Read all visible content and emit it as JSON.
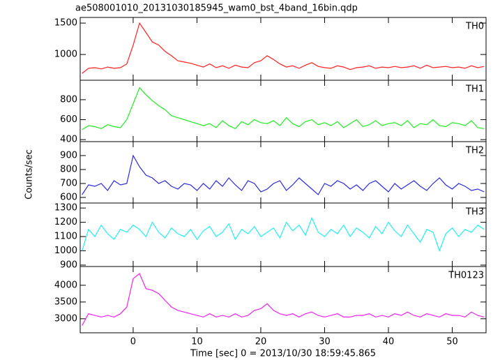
{
  "title": "ae508001010_20131030185945_wam0_bst_4band_16bin.qdp",
  "ylabel": "Counts/sec",
  "xlabel": "Time [sec] 0 = 2013/10/30 18:59:45.865",
  "chart_data": [
    {
      "type": "line",
      "label": "TH0",
      "color": "#ff2020",
      "x": [
        -8,
        -7,
        -6,
        -5,
        -4,
        -3,
        -2,
        -1,
        0,
        1,
        2,
        3,
        4,
        5,
        6,
        7,
        8,
        9,
        10,
        11,
        12,
        13,
        14,
        15,
        16,
        17,
        18,
        19,
        20,
        21,
        22,
        23,
        24,
        25,
        26,
        27,
        28,
        29,
        30,
        31,
        32,
        33,
        34,
        35,
        36,
        37,
        38,
        39,
        40,
        41,
        42,
        43,
        44,
        45,
        46,
        47,
        48,
        49,
        50,
        51,
        52,
        53,
        54,
        55
      ],
      "values": [
        700,
        780,
        790,
        770,
        800,
        780,
        790,
        850,
        1150,
        1500,
        1350,
        1200,
        1150,
        1050,
        980,
        900,
        880,
        860,
        830,
        800,
        850,
        790,
        820,
        780,
        830,
        800,
        790,
        870,
        900,
        980,
        920,
        850,
        800,
        820,
        780,
        830,
        870,
        810,
        790,
        780,
        820,
        800,
        760,
        790,
        800,
        820,
        780,
        800,
        790,
        810,
        790,
        800,
        820,
        780,
        830,
        790,
        800,
        810,
        790,
        800,
        780,
        820,
        790,
        810
      ],
      "ylim": [
        590,
        1590
      ],
      "yticks": [
        1000,
        1500
      ]
    },
    {
      "type": "line",
      "label": "TH1",
      "color": "#20ee20",
      "x": [
        -8,
        -7,
        -6,
        -5,
        -4,
        -3,
        -2,
        -1,
        0,
        1,
        2,
        3,
        4,
        5,
        6,
        7,
        8,
        9,
        10,
        11,
        12,
        13,
        14,
        15,
        16,
        17,
        18,
        19,
        20,
        21,
        22,
        23,
        24,
        25,
        26,
        27,
        28,
        29,
        30,
        31,
        32,
        33,
        34,
        35,
        36,
        37,
        38,
        39,
        40,
        41,
        42,
        43,
        44,
        45,
        46,
        47,
        48,
        49,
        50,
        51,
        52,
        53,
        54,
        55
      ],
      "values": [
        500,
        540,
        530,
        510,
        550,
        530,
        520,
        600,
        760,
        920,
        850,
        790,
        740,
        700,
        640,
        620,
        600,
        580,
        560,
        540,
        560,
        520,
        590,
        540,
        510,
        580,
        550,
        600,
        570,
        560,
        590,
        540,
        620,
        560,
        530,
        580,
        600,
        550,
        570,
        540,
        580,
        520,
        560,
        600,
        530,
        550,
        590,
        540,
        560,
        570,
        540,
        590,
        520,
        560,
        550,
        600,
        540,
        530,
        570,
        560,
        540,
        590,
        520,
        510
      ],
      "ylim": [
        380,
        995
      ],
      "yticks": [
        400,
        600,
        800
      ]
    },
    {
      "type": "line",
      "label": "TH2",
      "color": "#2a2ae0",
      "x": [
        -8,
        -7,
        -6,
        -5,
        -4,
        -3,
        -2,
        -1,
        0,
        1,
        2,
        3,
        4,
        5,
        6,
        7,
        8,
        9,
        10,
        11,
        12,
        13,
        14,
        15,
        16,
        17,
        18,
        19,
        20,
        21,
        22,
        23,
        24,
        25,
        26,
        27,
        28,
        29,
        30,
        31,
        32,
        33,
        34,
        35,
        36,
        37,
        38,
        39,
        40,
        41,
        42,
        43,
        44,
        45,
        46,
        47,
        48,
        49,
        50,
        51,
        52,
        53,
        54,
        55
      ],
      "values": [
        620,
        690,
        680,
        700,
        650,
        720,
        690,
        700,
        900,
        820,
        760,
        740,
        700,
        720,
        680,
        660,
        700,
        690,
        650,
        700,
        660,
        720,
        680,
        740,
        690,
        650,
        720,
        700,
        640,
        660,
        700,
        720,
        650,
        690,
        740,
        700,
        660,
        620,
        700,
        680,
        720,
        700,
        660,
        690,
        650,
        700,
        720,
        680,
        640,
        700,
        660,
        690,
        720,
        680,
        650,
        700,
        740,
        690,
        660,
        700,
        680,
        650,
        660,
        640
      ],
      "ylim": [
        560,
        1000
      ],
      "yticks": [
        600,
        700,
        800,
        900
      ]
    },
    {
      "type": "line",
      "label": "TH3",
      "color": "#20f0f0",
      "x": [
        -8,
        -7,
        -6,
        -5,
        -4,
        -3,
        -2,
        -1,
        0,
        1,
        2,
        3,
        4,
        5,
        6,
        7,
        8,
        9,
        10,
        11,
        12,
        13,
        14,
        15,
        16,
        17,
        18,
        19,
        20,
        21,
        22,
        23,
        24,
        25,
        26,
        27,
        28,
        29,
        30,
        31,
        32,
        33,
        34,
        35,
        36,
        37,
        38,
        39,
        40,
        41,
        42,
        43,
        44,
        45,
        46,
        47,
        48,
        49,
        50,
        51,
        52,
        53,
        54,
        55
      ],
      "values": [
        1000,
        1150,
        1100,
        1180,
        1120,
        1080,
        1150,
        1130,
        1180,
        1150,
        1100,
        1200,
        1130,
        1090,
        1160,
        1120,
        1100,
        1150,
        1080,
        1140,
        1170,
        1100,
        1130,
        1190,
        1080,
        1150,
        1120,
        1170,
        1100,
        1130,
        1160,
        1090,
        1200,
        1140,
        1180,
        1110,
        1230,
        1130,
        1100,
        1150,
        1120,
        1180,
        1100,
        1160,
        1130,
        1090,
        1170,
        1120,
        1200,
        1140,
        1100,
        1180,
        1120,
        1060,
        1150,
        1130,
        1000,
        1120,
        1160,
        1100,
        1150,
        1130,
        1180,
        1150
      ],
      "ylim": [
        890,
        1335
      ],
      "yticks": [
        900,
        1000,
        1100,
        1200,
        1300
      ]
    },
    {
      "type": "line",
      "label": "TH0123",
      "color": "#f020f0",
      "x": [
        -8,
        -7,
        -6,
        -5,
        -4,
        -3,
        -2,
        -1,
        0,
        1,
        2,
        3,
        4,
        5,
        6,
        7,
        8,
        9,
        10,
        11,
        12,
        13,
        14,
        15,
        16,
        17,
        18,
        19,
        20,
        21,
        22,
        23,
        24,
        25,
        26,
        27,
        28,
        29,
        30,
        31,
        32,
        33,
        34,
        35,
        36,
        37,
        38,
        39,
        40,
        41,
        42,
        43,
        44,
        45,
        46,
        47,
        48,
        49,
        50,
        51,
        52,
        53,
        54,
        55
      ],
      "values": [
        2800,
        3150,
        3100,
        3050,
        3100,
        3050,
        3150,
        3350,
        4200,
        4350,
        3900,
        3850,
        3750,
        3550,
        3350,
        3250,
        3200,
        3150,
        3100,
        3050,
        3150,
        3050,
        3100,
        3050,
        3150,
        3050,
        3100,
        3250,
        3300,
        3450,
        3250,
        3150,
        3100,
        3150,
        3050,
        3150,
        3200,
        3100,
        3050,
        3100,
        3150,
        3050,
        3050,
        3100,
        3100,
        3150,
        3050,
        3100,
        3050,
        3150,
        3100,
        3200,
        3100,
        3050,
        3150,
        3100,
        3050,
        3150,
        3100,
        3100,
        3050,
        3200,
        3100,
        3050
      ],
      "ylim": [
        2580,
        4560
      ],
      "yticks": [
        3000,
        3500,
        4000
      ],
      "xlim": [
        -8.3,
        55.3
      ],
      "xticks": [
        0,
        10,
        20,
        30,
        40,
        50
      ]
    }
  ]
}
